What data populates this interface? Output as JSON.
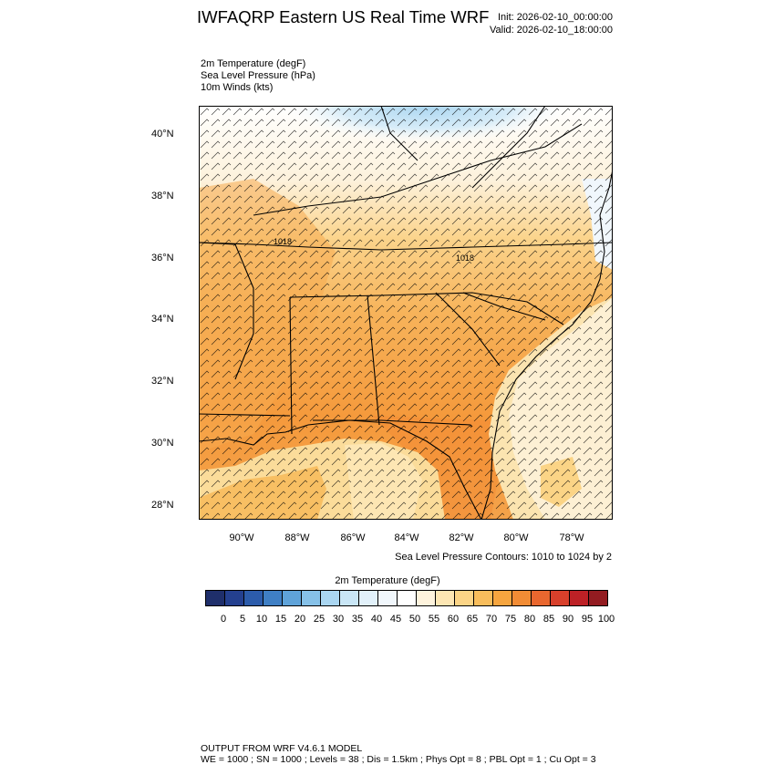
{
  "header": {
    "title": "IWFAQRP Eastern US Real Time WRF",
    "init": "Init: 2026-02-10_00:00:00",
    "valid": "Valid: 2026-02-10_18:00:00"
  },
  "fields": [
    "2m Temperature   (degF)",
    "Sea Level Pressure   (hPa)",
    "10m Winds   (kts)"
  ],
  "map": {
    "lat_labels": [
      "40°N",
      "38°N",
      "36°N",
      "34°N",
      "32°N",
      "30°N",
      "28°N"
    ],
    "lon_labels": [
      "90°W",
      "88°W",
      "86°W",
      "84°W",
      "82°W",
      "80°W",
      "78°W"
    ],
    "pressure_labels": [
      "1018",
      "1018"
    ]
  },
  "contours_note": "Sea Level Pressure Contours: 1010 to 1024 by 2",
  "colorbar": {
    "title": "2m Temperature  (degF)",
    "labels": [
      "0",
      "5",
      "10",
      "15",
      "20",
      "25",
      "30",
      "35",
      "40",
      "45",
      "50",
      "55",
      "60",
      "65",
      "70",
      "75",
      "80",
      "85",
      "90",
      "95",
      "100"
    ],
    "colors": [
      "#1f2f6b",
      "#24408f",
      "#2c5cab",
      "#3f7fc4",
      "#5fa3d9",
      "#86c1e8",
      "#aad6f1",
      "#c9e6f6",
      "#e2f1fa",
      "#f1f7fc",
      "#ffffff",
      "#fef3dc",
      "#fde6b3",
      "#fbd486",
      "#f8bd5c",
      "#f6a53f",
      "#f28c35",
      "#e9672f",
      "#d8402b",
      "#bd2126",
      "#931c21"
    ]
  },
  "footer": {
    "line1": "OUTPUT FROM WRF V4.6.1 MODEL",
    "line2": "WE = 1000 ; SN = 1000 ; Levels = 38 ; Dis = 1.5km ; Phys Opt = 8 ; PBL Opt = 1 ; Cu Opt = 3"
  }
}
